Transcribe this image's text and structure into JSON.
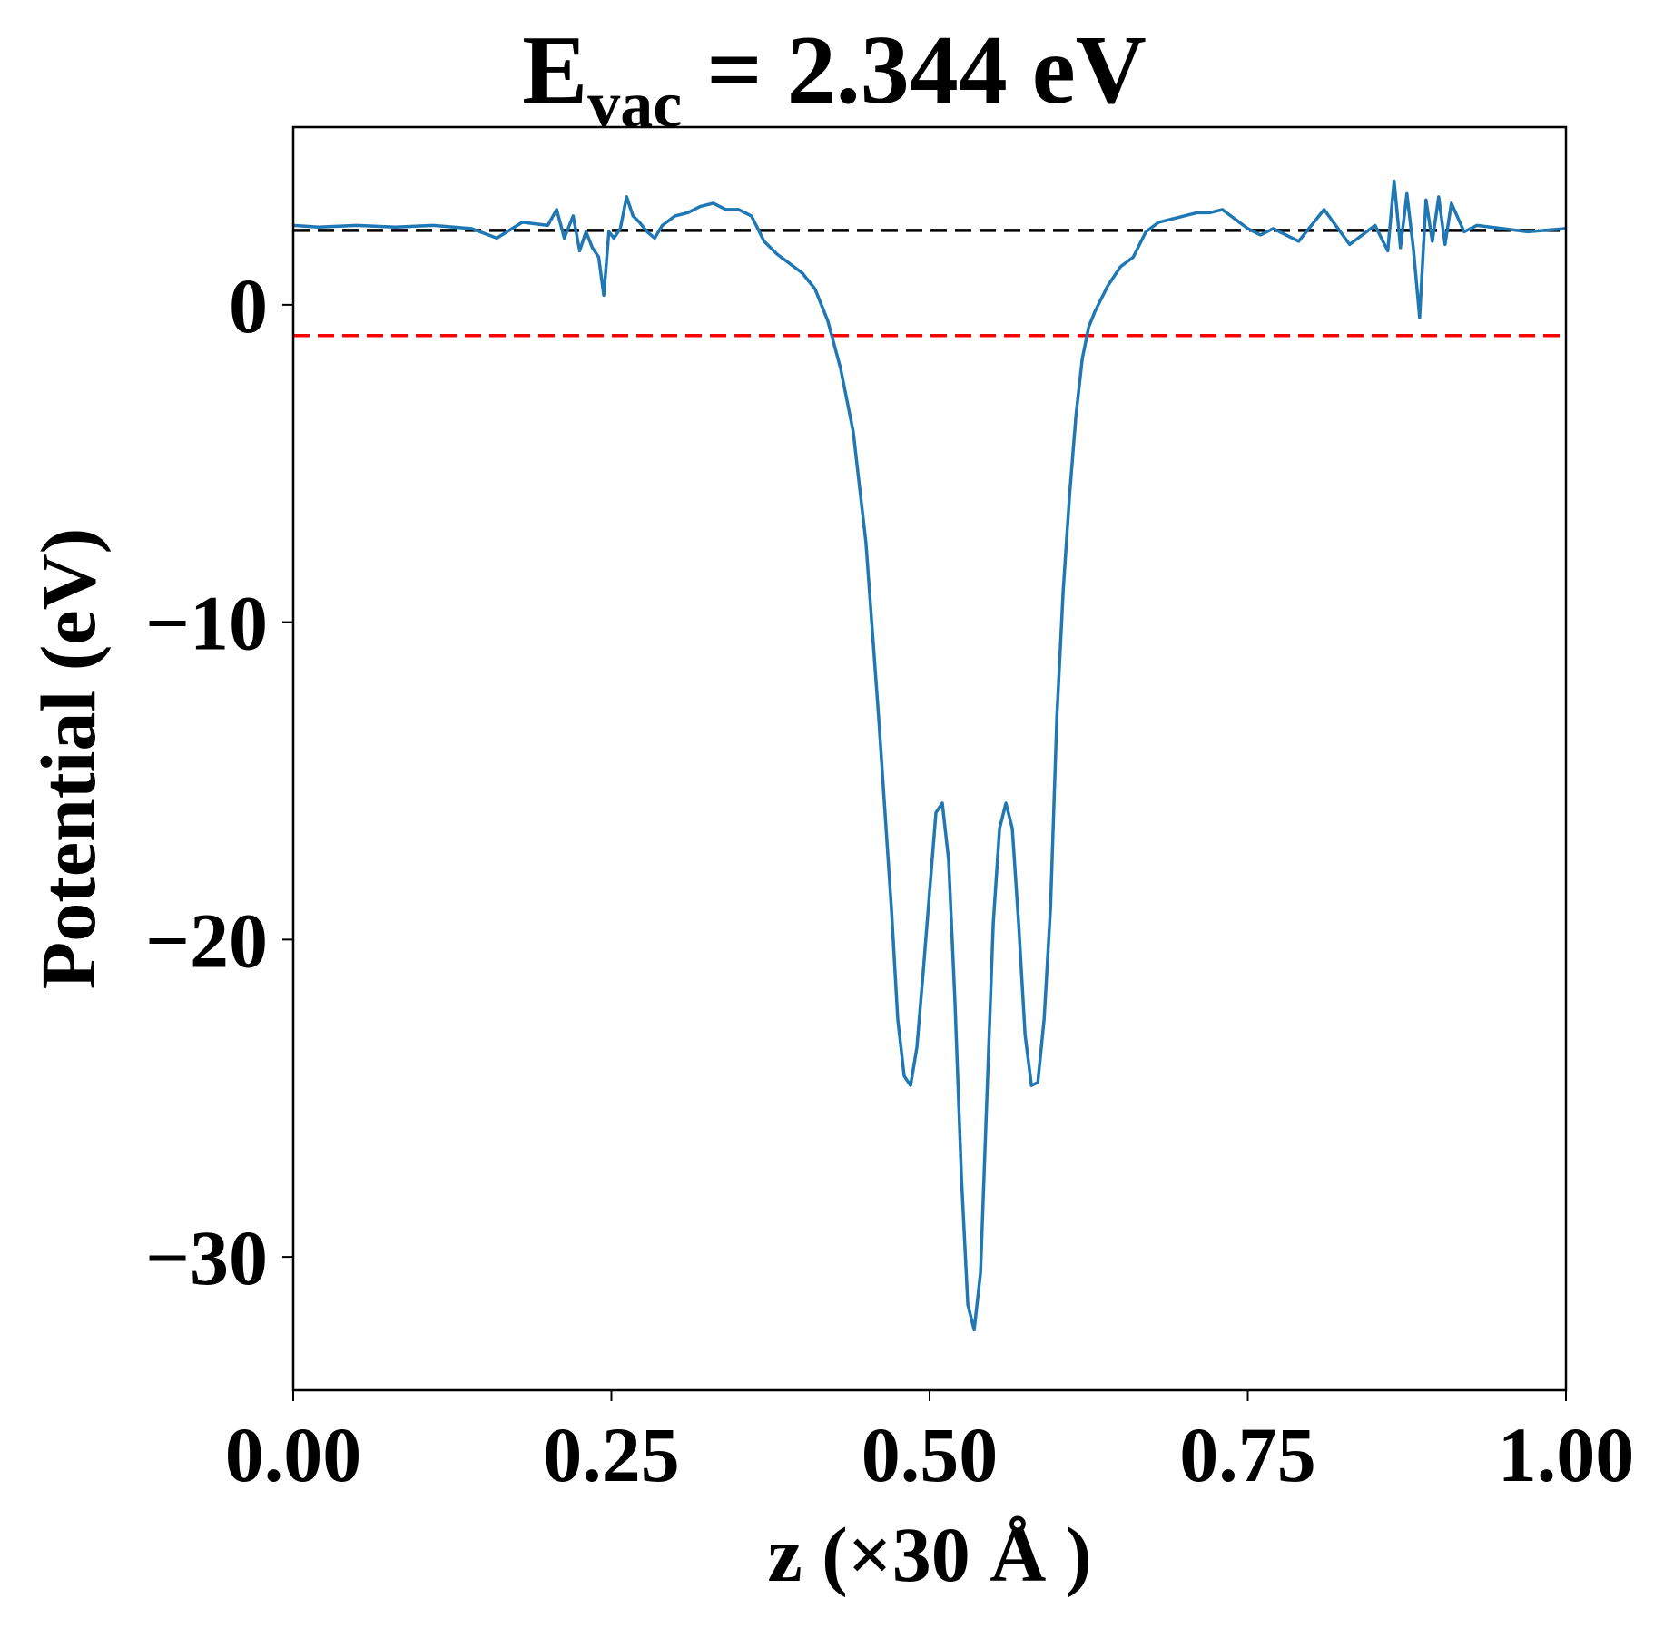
{
  "chart_data": {
    "type": "line",
    "title": {
      "main": "E",
      "subscript": "vac",
      "rest": " = 2.344 eV"
    },
    "xlabel": "z (×30 Å )",
    "ylabel": "Potential (eV)",
    "xlim": [
      0.0,
      1.0
    ],
    "ylim": [
      -34.2,
      5.6
    ],
    "x_ticks": [
      {
        "value": 0.0,
        "label": "0.00"
      },
      {
        "value": 0.25,
        "label": "0.25"
      },
      {
        "value": 0.5,
        "label": "0.50"
      },
      {
        "value": 0.75,
        "label": "0.75"
      },
      {
        "value": 1.0,
        "label": "1.00"
      }
    ],
    "y_ticks": [
      {
        "value": 0,
        "label": "0"
      },
      {
        "value": -10,
        "label": "−10"
      },
      {
        "value": -20,
        "label": "−20"
      },
      {
        "value": -30,
        "label": "−30"
      }
    ],
    "grid": false,
    "legend": "none",
    "reference_lines": [
      {
        "y": 2.344,
        "color": "#000000",
        "style": "dashed"
      },
      {
        "y": -0.97,
        "color": "#ff0000",
        "style": "dashed"
      }
    ],
    "series": [
      {
        "color": "#1f77b4",
        "x": [
          0.0,
          0.02,
          0.05,
          0.08,
          0.11,
          0.14,
          0.16,
          0.18,
          0.2,
          0.207,
          0.213,
          0.22,
          0.225,
          0.23,
          0.235,
          0.24,
          0.244,
          0.248,
          0.252,
          0.257,
          0.262,
          0.267,
          0.272,
          0.278,
          0.284,
          0.29,
          0.3,
          0.31,
          0.32,
          0.33,
          0.34,
          0.35,
          0.36,
          0.37,
          0.38,
          0.39,
          0.4,
          0.41,
          0.42,
          0.43,
          0.44,
          0.45,
          0.46,
          0.47,
          0.475,
          0.48,
          0.485,
          0.49,
          0.495,
          0.5,
          0.505,
          0.51,
          0.515,
          0.52,
          0.525,
          0.53,
          0.535,
          0.54,
          0.545,
          0.55,
          0.555,
          0.56,
          0.565,
          0.57,
          0.575,
          0.58,
          0.585,
          0.59,
          0.595,
          0.6,
          0.605,
          0.61,
          0.615,
          0.62,
          0.625,
          0.63,
          0.635,
          0.64,
          0.645,
          0.65,
          0.66,
          0.67,
          0.68,
          0.69,
          0.7,
          0.71,
          0.72,
          0.73,
          0.74,
          0.75,
          0.76,
          0.77,
          0.79,
          0.81,
          0.83,
          0.85,
          0.86,
          0.865,
          0.87,
          0.875,
          0.88,
          0.885,
          0.89,
          0.895,
          0.9,
          0.905,
          0.91,
          0.92,
          0.93,
          0.95,
          0.97,
          1.0
        ],
        "values": [
          2.5,
          2.45,
          2.5,
          2.45,
          2.5,
          2.4,
          2.1,
          2.6,
          2.5,
          3.0,
          2.1,
          2.8,
          1.7,
          2.3,
          1.8,
          1.5,
          0.3,
          2.3,
          2.1,
          2.4,
          3.4,
          2.8,
          2.6,
          2.3,
          2.1,
          2.5,
          2.8,
          2.9,
          3.1,
          3.2,
          3.0,
          3.0,
          2.8,
          2.0,
          1.6,
          1.3,
          1.0,
          0.5,
          -0.5,
          -2.0,
          -4.0,
          -7.5,
          -13.0,
          -19.0,
          -22.5,
          -24.3,
          -24.6,
          -23.4,
          -21.0,
          -18.5,
          -16.0,
          -15.7,
          -17.5,
          -22.0,
          -27.5,
          -31.5,
          -32.3,
          -30.5,
          -25.0,
          -19.5,
          -16.5,
          -15.7,
          -16.5,
          -19.5,
          -23.0,
          -24.6,
          -24.5,
          -22.5,
          -19.0,
          -13.0,
          -9.0,
          -6.0,
          -3.5,
          -1.7,
          -0.7,
          -0.2,
          0.2,
          0.6,
          0.9,
          1.2,
          1.5,
          2.3,
          2.6,
          2.7,
          2.8,
          2.9,
          2.9,
          3.0,
          2.7,
          2.4,
          2.2,
          2.4,
          2.0,
          3.0,
          1.9,
          2.5,
          1.7,
          3.9,
          1.8,
          3.5,
          1.8,
          -0.4,
          3.3,
          2.0,
          3.4,
          1.9,
          3.2,
          2.3,
          2.5,
          2.4,
          2.3,
          2.4
        ]
      }
    ]
  }
}
